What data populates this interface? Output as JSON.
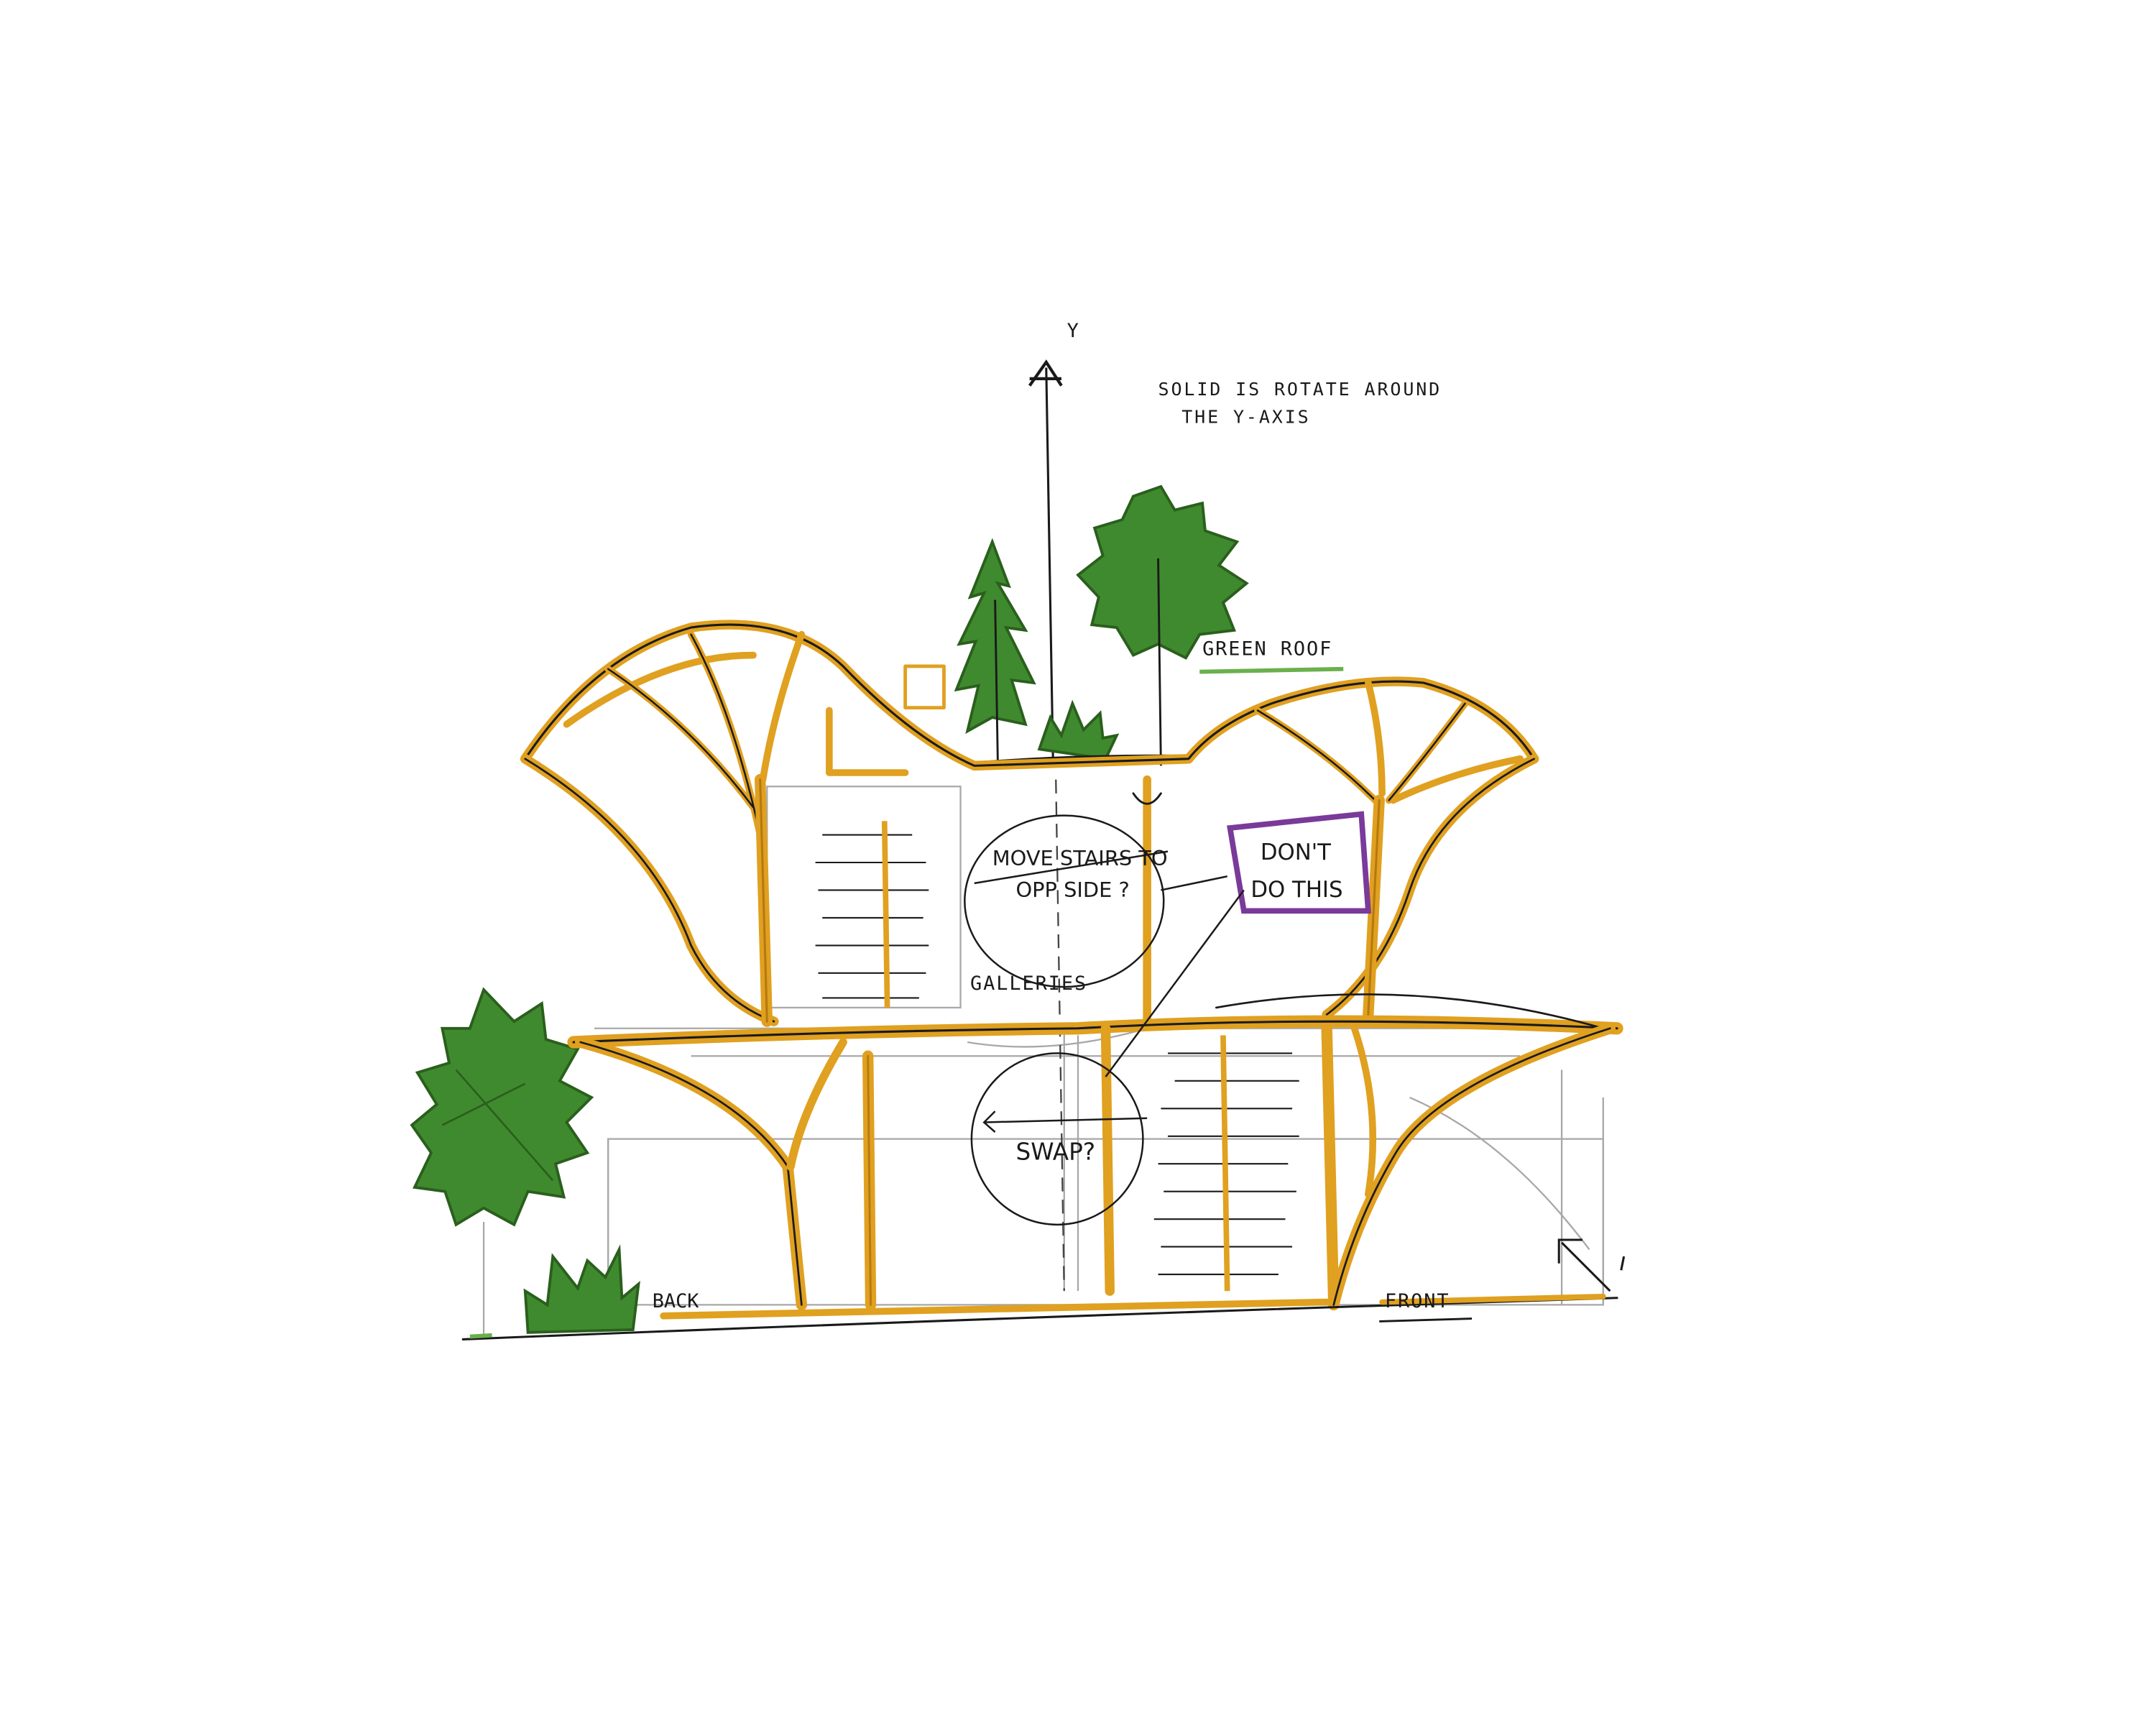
{
  "annotations": {
    "axis_label": "Y",
    "rotate_note_line1": "SOLID IS ROTATE AROUND",
    "rotate_note_line2": "THE Y-AXIS",
    "green_roof": "GREEN ROOF",
    "move_stairs_line1": "MOVE STAIRS TO",
    "move_stairs_line2": "OPP SIDE ?",
    "dont_do_line1": "DON'T",
    "dont_do_line2": "DO THIS",
    "galleries": "GALLERIES",
    "swap": "SWAP?",
    "back": "BACK",
    "front": "FRONT"
  },
  "colors": {
    "structure": "#e0a020",
    "structure_dark": "#b87810",
    "ink": "#1a1a1a",
    "pencil": "#9a9a9a",
    "tree": "#3f8a2e",
    "tree_dark": "#2a5f1d",
    "purple": "#7a3a9a",
    "underline_green": "#6ab04c",
    "paper": "#ffffff"
  }
}
